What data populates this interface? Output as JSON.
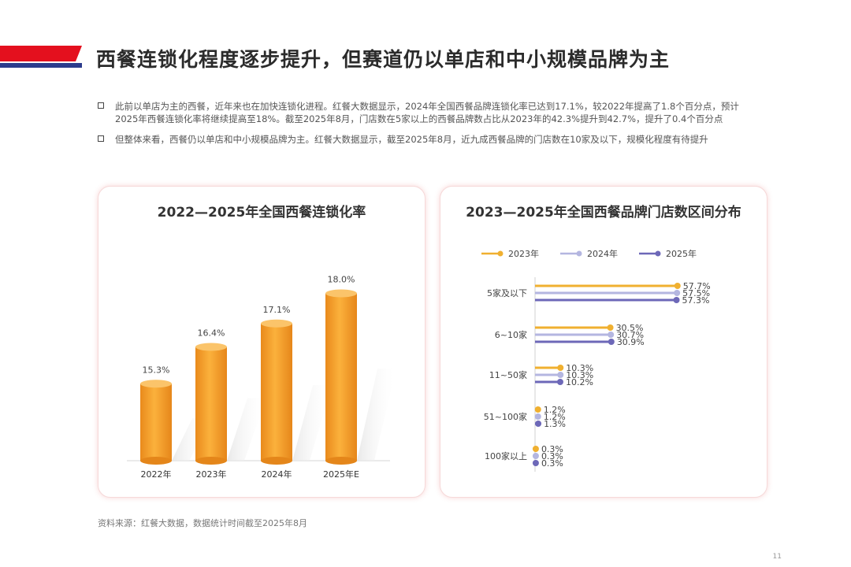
{
  "page": {
    "title": "西餐连锁化程度逐步提升，但赛道仍以单店和中小规模品牌为主",
    "page_number": "11",
    "source": "资料来源：红餐大数据，数据统计时间截至2025年8月",
    "colors": {
      "accent_red": "#e4101e",
      "navy": "#2c3c8c"
    }
  },
  "bullets": [
    "此前以单店为主的西餐，近年来也在加快连锁化进程。红餐大数据显示，2024年全国西餐品牌连锁化率已达到17.1%，较2022年提高了1.8个百分点，预计2025年西餐连锁化率将继续提高至18%。截至2025年8月，门店数在5家以上的西餐品牌数占比从2023年的42.3%提升到42.7%，提升了0.4个百分点",
    "但整体来看，西餐仍以单店和中小规模品牌为主。红餐大数据显示，截至2025年8月，近九成西餐品牌的门店数在10家及以下，规模化程度有待提升"
  ],
  "chart_data": [
    {
      "type": "bar",
      "title": "2022—2025年全国西餐连锁化率",
      "categories": [
        "2022年",
        "2023年",
        "2024年",
        "2025年E"
      ],
      "values": [
        15.3,
        16.4,
        17.1,
        18.0
      ],
      "labels": [
        "15.3%",
        "16.4%",
        "17.1%",
        "18.0%"
      ],
      "unit": "%",
      "ylim": [
        13,
        18.6
      ],
      "colors": {
        "bar": "#f5a030",
        "bar_light": "#fbc46a",
        "bar_dark": "#e4861a"
      }
    },
    {
      "type": "bar",
      "orientation": "horizontal",
      "title": "2023—2025年全国西餐品牌门店数区间分布",
      "categories": [
        "5家及以下",
        "6~10家",
        "11~50家",
        "51~100家",
        "100家以上"
      ],
      "series": [
        {
          "name": "2023年",
          "color": "#f0b030",
          "values": [
            57.7,
            30.5,
            10.3,
            1.2,
            0.3
          ],
          "labels": [
            "57.7%",
            "30.5%",
            "10.3%",
            "1.2%",
            "0.3%"
          ]
        },
        {
          "name": "2024年",
          "color": "#b4b6e0",
          "values": [
            57.5,
            30.7,
            10.3,
            1.2,
            0.3
          ],
          "labels": [
            "57.5%",
            "30.7%",
            "10.3%",
            "1.2%",
            "0.3%"
          ]
        },
        {
          "name": "2025年",
          "color": "#6d68b8",
          "values": [
            57.3,
            30.9,
            10.2,
            1.3,
            0.3
          ],
          "labels": [
            "57.3%",
            "30.9%",
            "10.2%",
            "1.3%",
            "0.3%"
          ]
        }
      ],
      "xlim": [
        0,
        60
      ],
      "legend": "top"
    }
  ]
}
